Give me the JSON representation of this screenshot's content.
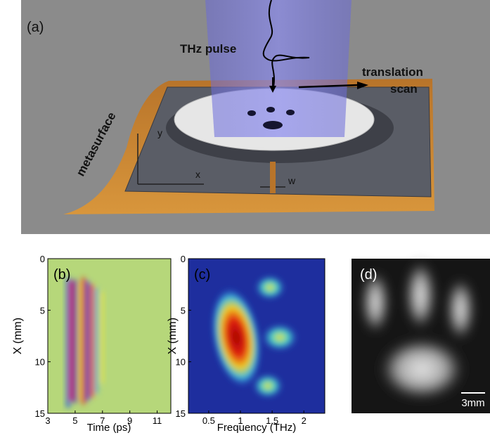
{
  "panel_a": {
    "label": "(a)",
    "pulse": "THz pulse",
    "scan_1": "translation",
    "scan_2": "scan",
    "surface": "metasurface",
    "axis_x": "x",
    "axis_y": "y",
    "gap": "w"
  },
  "panel_b": {
    "label": "(b)",
    "xlabel": "Time (ps)",
    "ylabel": "X (mm)",
    "xlim": [
      3,
      12
    ],
    "ylim": [
      0,
      15
    ],
    "xticks": [
      3,
      5,
      7,
      9,
      11
    ],
    "yticks": [
      0,
      5,
      10,
      15
    ]
  },
  "panel_c": {
    "label": "(c)",
    "xlabel": "Frequency (THz)",
    "ylabel": "X (mm)",
    "xlim": [
      0.18,
      2.33
    ],
    "ylim": [
      0,
      15
    ],
    "xticks": [
      0.5,
      1,
      1.5,
      2
    ],
    "yticks": [
      0,
      5,
      10,
      15
    ]
  },
  "panel_d": {
    "label": "(d)",
    "scale": "3mm"
  }
}
